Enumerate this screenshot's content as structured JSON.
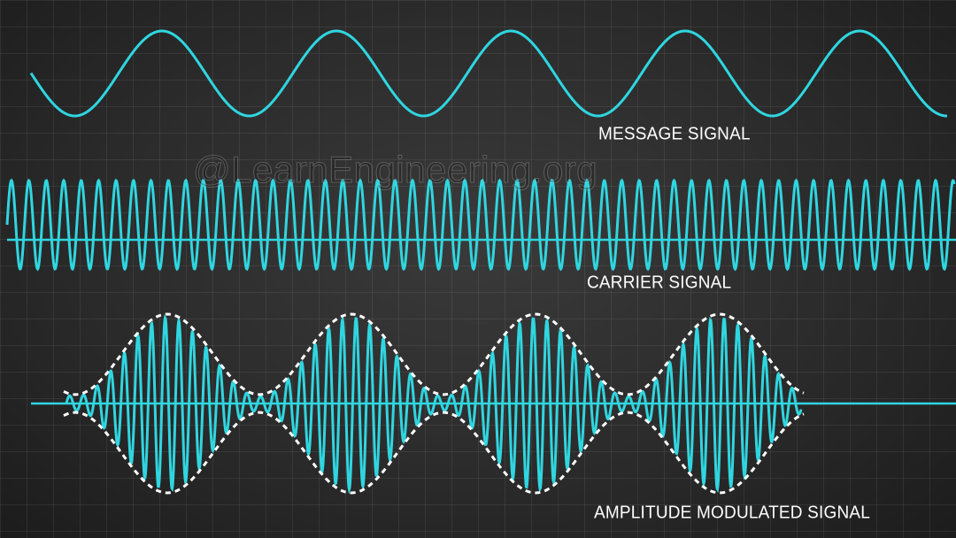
{
  "watermark": "@LearnEngineering.org",
  "labels": {
    "message": "MESSAGE SIGNAL",
    "carrier": "CARRIER SIGNAL",
    "am": "AMPLITUDE MODULATED SIGNAL"
  },
  "colors": {
    "wave": "#2fd6e0",
    "envelope": "#ffffff",
    "background": "#2b2b2b"
  }
}
